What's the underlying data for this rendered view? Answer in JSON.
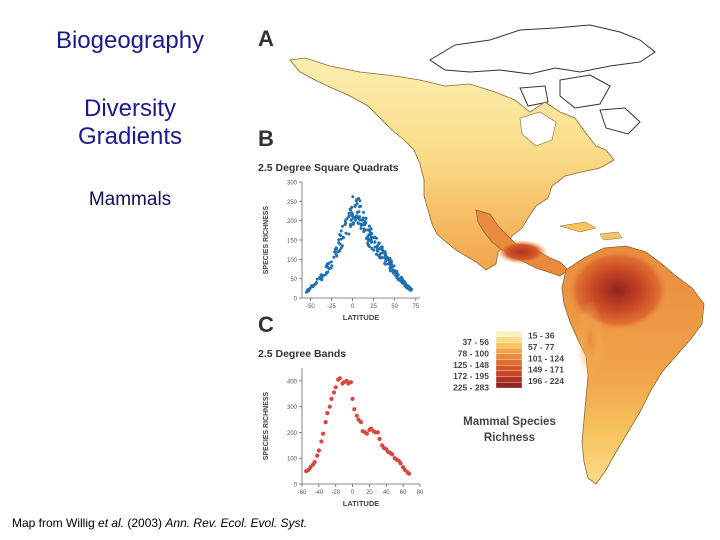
{
  "titles": {
    "main": "Biogeography",
    "subtitle": "Diversity Gradients",
    "taxon": "Mammals"
  },
  "panels": {
    "a": "A",
    "b": "B",
    "c": "C",
    "b_title": "2.5 Degree Square Quadrats",
    "c_title": "2.5 Degree Bands"
  },
  "chart_data": [
    {
      "type": "scatter",
      "panel": "B",
      "title": "2.5 Degree Square Quadrats",
      "xlabel": "LATITUDE",
      "ylabel": "SPECIES RICHNESS",
      "xlim": [
        -60,
        80
      ],
      "ylim": [
        0,
        300
      ],
      "xticks": [
        "-50",
        "-25",
        "0",
        "25",
        "50",
        "75"
      ],
      "yticks": [
        "0",
        "50",
        "100",
        "150",
        "200",
        "250",
        "300"
      ],
      "color": "#1f6fb2",
      "profile": {
        "x": [
          -55,
          -45,
          -35,
          -25,
          -15,
          -5,
          0,
          5,
          10,
          15,
          20,
          25,
          30,
          35,
          40,
          45,
          50,
          55,
          60,
          65,
          70
        ],
        "y": [
          15,
          35,
          60,
          95,
          145,
          190,
          225,
          235,
          210,
          180,
          160,
          150,
          130,
          115,
          100,
          85,
          70,
          55,
          40,
          30,
          20
        ]
      }
    },
    {
      "type": "scatter",
      "panel": "C",
      "title": "2.5 Degree Bands",
      "xlabel": "LATITUDE",
      "ylabel": "SPECIES RICHNESS",
      "xlim": [
        -60,
        80
      ],
      "ylim": [
        0,
        450
      ],
      "xticks": [
        "-60",
        "-40",
        "-20",
        "0",
        "20",
        "40",
        "60",
        "80"
      ],
      "yticks": [
        "0",
        "100",
        "200",
        "300",
        "400"
      ],
      "color": "#d9453f",
      "x": [
        -55,
        -52,
        -50,
        -47,
        -45,
        -42,
        -40,
        -37,
        -35,
        -32,
        -30,
        -27,
        -25,
        -22,
        -20,
        -17,
        -15,
        -12,
        -10,
        -7,
        -5,
        -2,
        0,
        2,
        5,
        7,
        10,
        12,
        15,
        17,
        20,
        22,
        25,
        27,
        30,
        32,
        35,
        37,
        40,
        42,
        45,
        47,
        50,
        52,
        55,
        57,
        60,
        62,
        65,
        67
      ],
      "y": [
        50,
        55,
        65,
        75,
        85,
        110,
        130,
        165,
        195,
        240,
        275,
        300,
        330,
        355,
        375,
        405,
        410,
        390,
        395,
        400,
        390,
        395,
        330,
        290,
        265,
        250,
        240,
        205,
        200,
        195,
        210,
        215,
        205,
        200,
        200,
        175,
        150,
        140,
        135,
        125,
        120,
        115,
        100,
        95,
        90,
        80,
        65,
        55,
        45,
        40
      ]
    }
  ],
  "map": {
    "legend_title": "Mammal Species Richness",
    "legend_left": [
      "37 - 56",
      "78 - 100",
      "125 - 148",
      "172 - 195",
      "225 - 283"
    ],
    "legend_right": [
      "15 - 36",
      "57 - 77",
      "101 - 124",
      "149 - 171",
      "196 - 224"
    ],
    "legend_colors": [
      "#fbf1c0",
      "#f9dc88",
      "#f7c460",
      "#f2a44a",
      "#ea8a3c",
      "#e06e30",
      "#d55728",
      "#c64524",
      "#b03322",
      "#93231f"
    ]
  },
  "caption": {
    "pre": "Map from Willig ",
    "etal": "et al.",
    "mid": " (2003) ",
    "journal": "Ann. Rev. Ecol. Evol. Syst."
  }
}
